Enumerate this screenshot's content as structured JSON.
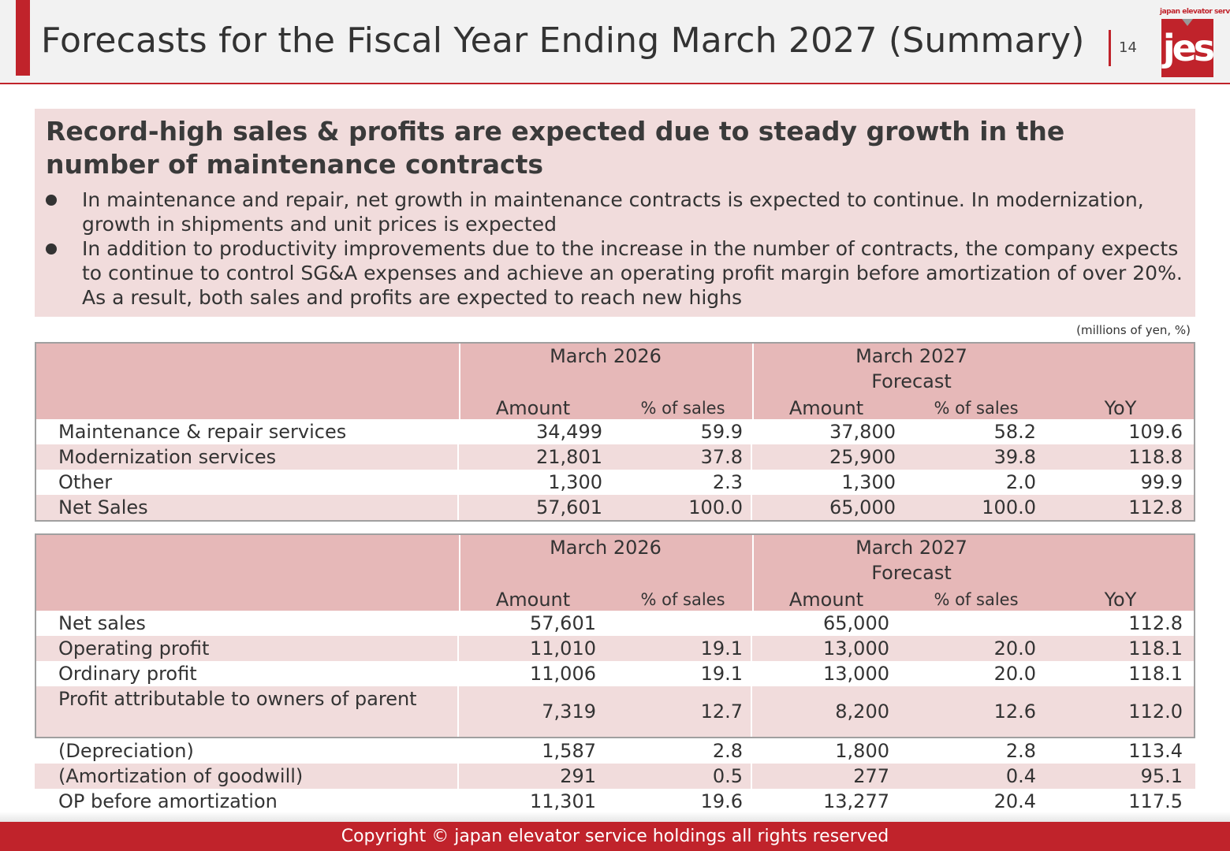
{
  "header": {
    "title": "Forecasts for the Fiscal Year Ending March 2027 (Summary)",
    "page_number": "14",
    "logo_tagline": "japan elevator service",
    "logo_text": "jes"
  },
  "summary": {
    "headline": "Record-high sales & profits are expected due to steady growth in the number of maintenance contracts",
    "bullets": [
      "In maintenance and repair, net growth in maintenance contracts is expected to continue. In modernization, growth in shipments and unit prices is expected",
      "In addition to productivity improvements due to the increase in the number of contracts, the company expects to continue to control SG&A expenses and achieve an operating profit margin before amortization of over 20%. As a result, both sales and profits are expected to reach new highs"
    ]
  },
  "units_note": "(millions of yen, %)",
  "table_header": {
    "period1": "March 2026",
    "period2_line1": "March 2027",
    "period2_line2": "Forecast",
    "amount": "Amount",
    "pct_sales": "% of sales",
    "yoy": "YoY"
  },
  "sales_table": {
    "rows": [
      {
        "label": "Maintenance & repair services",
        "amt1": "34,499",
        "pct1": "59.9",
        "amt2": "37,800",
        "pct2": "58.2",
        "yoy": "109.6"
      },
      {
        "label": "Modernization services",
        "amt1": "21,801",
        "pct1": "37.8",
        "amt2": "25,900",
        "pct2": "39.8",
        "yoy": "118.8"
      },
      {
        "label": "Other",
        "amt1": "1,300",
        "pct1": "2.3",
        "amt2": "1,300",
        "pct2": "2.0",
        "yoy": "99.9"
      },
      {
        "label": "Net Sales",
        "amt1": "57,601",
        "pct1": "100.0",
        "amt2": "65,000",
        "pct2": "100.0",
        "yoy": "112.8"
      }
    ]
  },
  "profit_table": {
    "rows": [
      {
        "label": "Net sales",
        "amt1": "57,601",
        "pct1": "",
        "amt2": "65,000",
        "pct2": "",
        "yoy": "112.8"
      },
      {
        "label": "Operating profit",
        "amt1": "11,010",
        "pct1": "19.1",
        "amt2": "13,000",
        "pct2": "20.0",
        "yoy": "118.1"
      },
      {
        "label": "Ordinary profit",
        "amt1": "11,006",
        "pct1": "19.1",
        "amt2": "13,000",
        "pct2": "20.0",
        "yoy": "118.1"
      },
      {
        "label": "Profit attributable to owners of parent",
        "amt1": "7,319",
        "pct1": "12.7",
        "amt2": "8,200",
        "pct2": "12.6",
        "yoy": "112.0"
      },
      {
        "label": "(Depreciation)",
        "amt1": "1,587",
        "pct1": "2.8",
        "amt2": "1,800",
        "pct2": "2.8",
        "yoy": "113.4"
      },
      {
        "label": "(Amortization of goodwill)",
        "amt1": "291",
        "pct1": "0.5",
        "amt2": "277",
        "pct2": "0.4",
        "yoy": "95.1"
      },
      {
        "label": "OP before amortization",
        "amt1": "11,301",
        "pct1": "19.6",
        "amt2": "13,277",
        "pct2": "20.4",
        "yoy": "117.5"
      }
    ]
  },
  "footer": {
    "copyright": "Copyright © japan elevator service holdings all rights reserved"
  }
}
